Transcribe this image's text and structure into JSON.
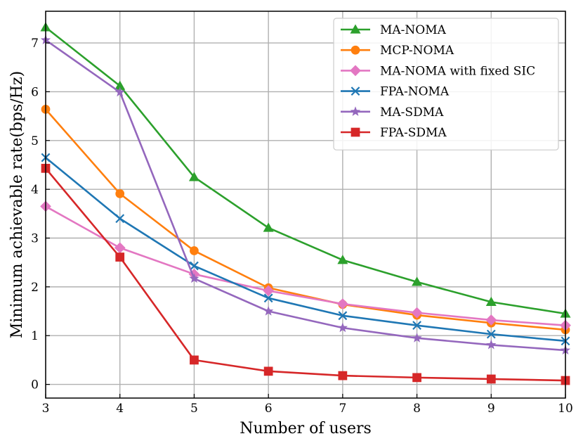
{
  "chart_data": {
    "type": "line",
    "title": "",
    "xlabel": "Number of users",
    "ylabel": "Minimum achievable rate(bps/Hz)",
    "x": [
      3,
      4,
      5,
      6,
      7,
      8,
      9,
      10
    ],
    "xlim": [
      3,
      10
    ],
    "ylim": [
      -0.28,
      7.65
    ],
    "xticks": [
      "3",
      "4",
      "5",
      "6",
      "7",
      "8",
      "9",
      "10"
    ],
    "yticks": [
      0,
      1,
      2,
      3,
      4,
      5,
      6,
      7
    ],
    "ytick_labels": [
      "0",
      "1",
      "2",
      "3",
      "4",
      "5",
      "6",
      "7"
    ],
    "grid": true,
    "legend_position": "top-right",
    "series": [
      {
        "name": "MA-NOMA",
        "color": "#2ca02c",
        "marker": "triangle",
        "values": [
          7.32,
          6.12,
          4.25,
          3.21,
          2.55,
          2.1,
          1.69,
          1.45
        ]
      },
      {
        "name": "MCP-NOMA",
        "color": "#ff7f0e",
        "marker": "circle",
        "values": [
          5.64,
          3.91,
          2.74,
          1.98,
          1.64,
          1.42,
          1.26,
          1.12
        ]
      },
      {
        "name": "MA-NOMA with fixed SIC",
        "color": "#e377c2",
        "marker": "diamond",
        "values": [
          3.65,
          2.8,
          2.26,
          1.92,
          1.65,
          1.47,
          1.32,
          1.21
        ]
      },
      {
        "name": "FPA-NOMA",
        "color": "#1f77b4",
        "marker": "x",
        "values": [
          4.65,
          3.4,
          2.43,
          1.77,
          1.41,
          1.21,
          1.03,
          0.89
        ]
      },
      {
        "name": "MA-SDMA",
        "color": "#9467bd",
        "marker": "star",
        "values": [
          7.06,
          5.99,
          2.17,
          1.5,
          1.16,
          0.95,
          0.81,
          0.7
        ]
      },
      {
        "name": "FPA-SDMA",
        "color": "#d62728",
        "marker": "square",
        "values": [
          4.43,
          2.61,
          0.5,
          0.27,
          0.18,
          0.14,
          0.11,
          0.08
        ]
      }
    ]
  }
}
